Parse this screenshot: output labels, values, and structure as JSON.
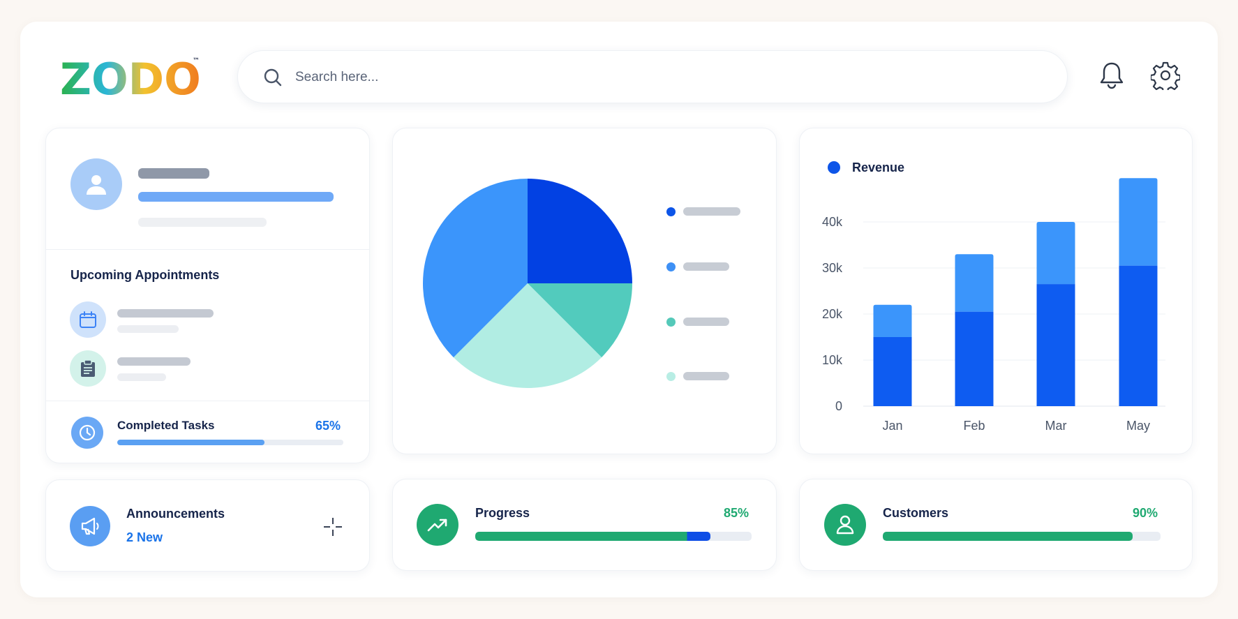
{
  "app": {
    "logo_text": "ZODO",
    "trademark": "™"
  },
  "search": {
    "placeholder": "Search here..."
  },
  "appointments": {
    "title": "Upcoming Appointments",
    "completed_label": "Completed Tasks",
    "completed_value": "65%",
    "completed_fraction": 0.65
  },
  "pie": {
    "slices": [
      {
        "value": 25,
        "color": "#0241e3"
      },
      {
        "value": 12.5,
        "color": "#52cbbd"
      },
      {
        "value": 25,
        "color": "#b1ede3"
      },
      {
        "value": 37.5,
        "color": "#3b95fb"
      }
    ],
    "legend_colors": [
      "#0d55e8",
      "#3e90f5",
      "#55c9b9",
      "#b8ede4"
    ]
  },
  "chart_data": {
    "type": "bar",
    "stacked": true,
    "categories": [
      "Jan",
      "Feb",
      "Mar",
      "May"
    ],
    "series": [
      {
        "name": "Revenue",
        "values": [
          15000,
          20500,
          26500,
          30500
        ],
        "color": "#0e5cf1"
      },
      {
        "values": [
          7000,
          12500,
          13500,
          19000
        ],
        "color": "#3b95fb"
      }
    ],
    "y_ticks": [
      "0",
      "10k",
      "20k",
      "30k",
      "40k"
    ],
    "ylim": [
      0,
      50000
    ],
    "legend": "Revenue",
    "legend_color": "#0d55e8",
    "grid": true
  },
  "announcements": {
    "label": "Announcements",
    "badge": "2 New"
  },
  "progress": {
    "label": "Progress",
    "value": "85%",
    "fraction": 0.85
  },
  "customers": {
    "label": "Customers",
    "value": "90%",
    "fraction": 0.9
  },
  "colors": {
    "accent_blue": "#1a73e8",
    "green": "#1fa971",
    "navy": "#16244a"
  },
  "icons": [
    "search-icon",
    "bell-icon",
    "gear-icon",
    "user-icon",
    "calendar-icon",
    "clipboard-icon",
    "clock-icon",
    "megaphone-icon",
    "crosshair-icon",
    "trending-up-icon",
    "person-icon"
  ]
}
